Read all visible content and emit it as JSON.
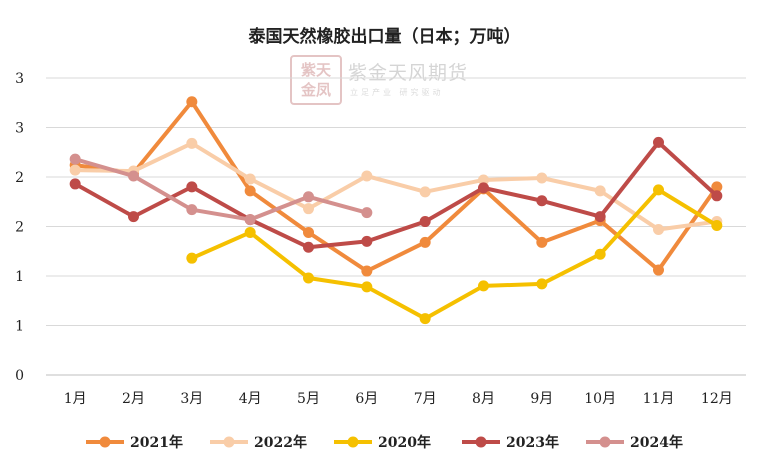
{
  "chart_data": {
    "type": "line",
    "title": "泰国天然橡胶出口量（日本；万吨）",
    "xlabel": "",
    "ylabel": "",
    "categories": [
      "1月",
      "2月",
      "3月",
      "4月",
      "5月",
      "6月",
      "7月",
      "8月",
      "9月",
      "10月",
      "11月",
      "12月"
    ],
    "y_tick_labels": [
      "0",
      "1",
      "1",
      "2",
      "2",
      "3",
      "3"
    ],
    "ylim": [
      0,
      3.0
    ],
    "grid": "horizontal",
    "legend_position": "bottom",
    "series": [
      {
        "name": "2021年",
        "color": "#F08A3C",
        "values": [
          2.12,
          2.04,
          2.76,
          1.86,
          1.44,
          1.05,
          1.34,
          1.88,
          1.34,
          1.56,
          1.06,
          1.9
        ]
      },
      {
        "name": "2022年",
        "color": "#F9CDA8",
        "values": [
          2.07,
          2.06,
          2.34,
          1.98,
          1.68,
          2.01,
          1.85,
          1.97,
          1.99,
          1.86,
          1.47,
          1.55
        ]
      },
      {
        "name": "2020年",
        "color": "#F5C000",
        "values": [
          null,
          null,
          1.18,
          1.44,
          0.98,
          0.89,
          0.57,
          0.9,
          0.92,
          1.22,
          1.87,
          1.51
        ]
      },
      {
        "name": "2023年",
        "color": "#BE4B48",
        "values": [
          1.93,
          1.6,
          1.9,
          1.57,
          1.29,
          1.35,
          1.55,
          1.89,
          1.76,
          1.6,
          2.35,
          1.81
        ]
      },
      {
        "name": "2024年",
        "color": "#D4908E",
        "values": [
          2.18,
          2.01,
          1.67,
          1.57,
          1.8,
          1.64,
          null,
          null,
          null,
          null,
          null,
          null
        ]
      }
    ]
  },
  "watermark": {
    "seal": "紫天金凤",
    "name": "紫金天风期货",
    "slogan": "立足产业 研究驱动"
  }
}
